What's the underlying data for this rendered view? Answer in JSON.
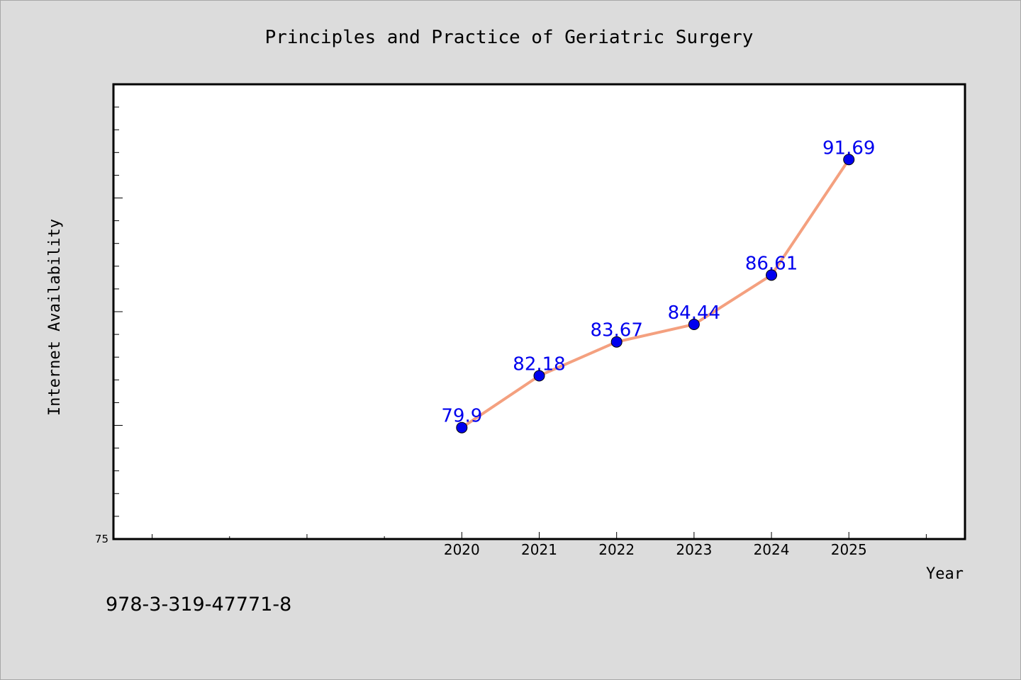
{
  "chart_data": {
    "type": "line",
    "title": "Principles and Practice of Geriatric Surgery",
    "xlabel": "Year",
    "ylabel": "Internet Availability",
    "x": [
      2020,
      2021,
      2022,
      2023,
      2024,
      2025
    ],
    "values": [
      79.9,
      82.18,
      83.67,
      84.44,
      86.61,
      91.69
    ],
    "data_labels": [
      "79.9",
      "82.18",
      "83.67",
      "84.44",
      "86.61",
      "91.69"
    ],
    "x_tick_labels": [
      "2020",
      "2021",
      "2022",
      "2023",
      "2024",
      "2025"
    ],
    "xlim": [
      2015.5,
      2026.5
    ],
    "ylim": [
      75,
      95
    ],
    "y_tick_labels": [
      "75"
    ],
    "grid": false,
    "line_color": "#f4a07f",
    "marker_color": "#0000ee",
    "label_color": "#0000ee"
  },
  "footer": {
    "isbn": "978-3-319-47771-8"
  }
}
